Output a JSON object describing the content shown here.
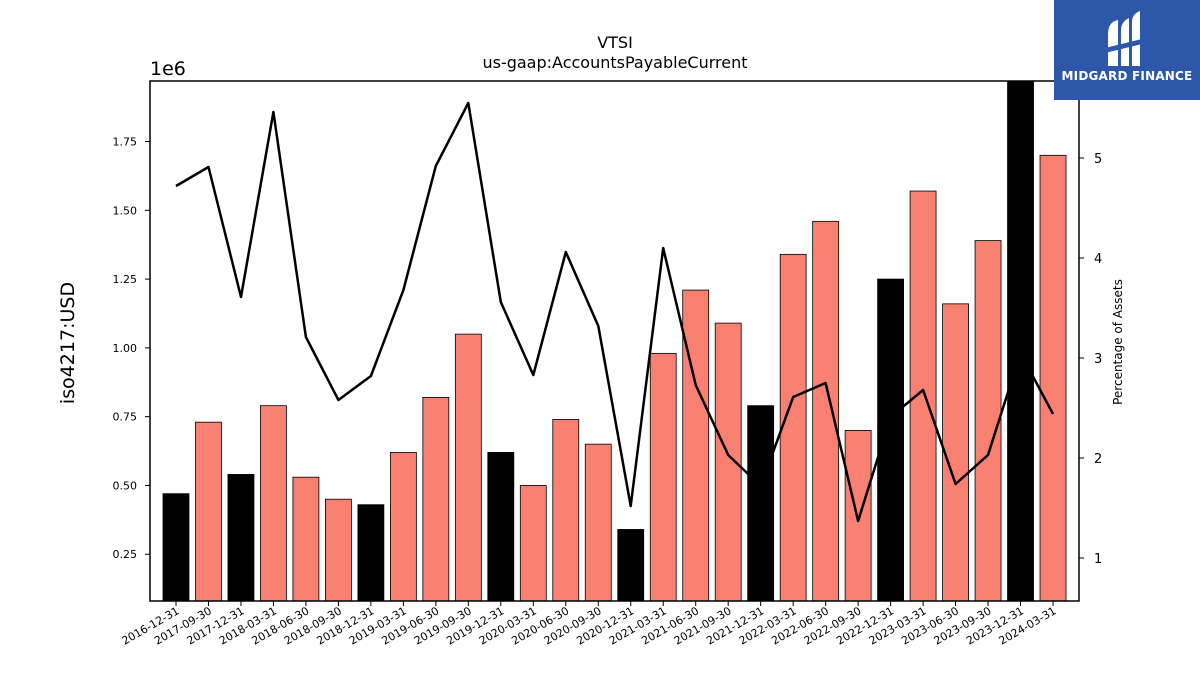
{
  "chart_data": {
    "type": "bar",
    "title": "VTSI",
    "subtitle": "us-gaap:AccountsPayableCurrent",
    "ylabel": "iso4217:USD",
    "y_offset_label": "1e6",
    "y2label": "Percentage of Assets",
    "ylim": [
      0.08,
      1.97
    ],
    "y2lim": [
      0.57,
      5.77
    ],
    "yticks": [
      "0.25",
      "0.50",
      "0.75",
      "1.00",
      "1.25",
      "1.50",
      "1.75"
    ],
    "y2ticks": [
      "1",
      "2",
      "3",
      "4",
      "5"
    ],
    "categories": [
      "2016-12-31",
      "2017-09-30",
      "2017-12-31",
      "2018-03-31",
      "2018-06-30",
      "2018-09-30",
      "2018-12-31",
      "2019-03-31",
      "2019-06-30",
      "2019-09-30",
      "2019-12-31",
      "2020-03-31",
      "2020-06-30",
      "2020-09-30",
      "2020-12-31",
      "2021-03-31",
      "2021-06-30",
      "2021-09-30",
      "2021-12-31",
      "2022-03-31",
      "2022-06-30",
      "2022-09-30",
      "2022-12-31",
      "2023-03-31",
      "2023-06-30",
      "2023-09-30",
      "2023-12-31",
      "2024-03-31"
    ],
    "bar_values": [
      0.47,
      0.73,
      0.54,
      0.79,
      0.53,
      0.45,
      0.43,
      0.62,
      0.82,
      1.05,
      0.62,
      0.5,
      0.74,
      0.65,
      0.34,
      0.98,
      1.21,
      1.09,
      0.79,
      1.34,
      1.46,
      0.7,
      1.25,
      1.57,
      1.16,
      1.39,
      1.97,
      1.7
    ],
    "bar_colors": [
      "#000000",
      "#fa8072",
      "#000000",
      "#fa8072",
      "#fa8072",
      "#fa8072",
      "#000000",
      "#fa8072",
      "#fa8072",
      "#fa8072",
      "#000000",
      "#fa8072",
      "#fa8072",
      "#fa8072",
      "#000000",
      "#fa8072",
      "#fa8072",
      "#fa8072",
      "#000000",
      "#fa8072",
      "#fa8072",
      "#fa8072",
      "#000000",
      "#fa8072",
      "#fa8072",
      "#fa8072",
      "#000000",
      "#fa8072"
    ],
    "line_values": [
      4.72,
      4.91,
      3.61,
      5.46,
      3.21,
      2.58,
      2.82,
      3.68,
      4.92,
      5.55,
      3.56,
      2.83,
      4.06,
      3.32,
      1.52,
      4.1,
      2.73,
      2.03,
      1.72,
      2.61,
      2.75,
      1.37,
      2.41,
      2.68,
      1.74,
      2.03,
      3.05,
      2.44
    ],
    "grid": false
  },
  "logo": {
    "text": "MIDGARD FINANCE"
  }
}
